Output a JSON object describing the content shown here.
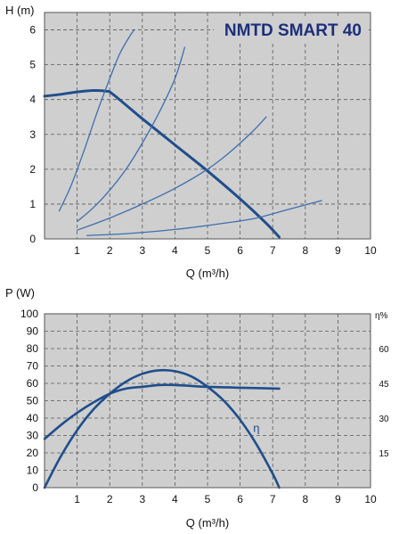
{
  "chart_data": [
    {
      "type": "line",
      "title": "NMTD SMART 40",
      "xlabel": "Q (m³/h)",
      "ylabel": "H (m)",
      "xlim": [
        0,
        10
      ],
      "ylim": [
        0,
        6.5
      ],
      "x_ticks": [
        "1",
        "2",
        "3",
        "4",
        "5",
        "6",
        "7",
        "8",
        "9",
        "10"
      ],
      "y_ticks": [
        "0",
        "1",
        "2",
        "3",
        "4",
        "5",
        "6"
      ],
      "grid": true,
      "colors": {
        "pump_curve": "#1f4e8c",
        "system_curves": "#3d6fae",
        "plot_bg": "#cfcfcf",
        "title": "#1c2f7a"
      },
      "series": [
        {
          "x": [
            0,
            0.5,
            1.0,
            1.5,
            1.9,
            2.1,
            3.0,
            4.0,
            5.0,
            6.0,
            6.8,
            7.2
          ],
          "y": [
            4.1,
            4.15,
            4.22,
            4.26,
            4.24,
            4.15,
            3.45,
            2.7,
            1.95,
            1.15,
            0.45,
            0.05
          ]
        },
        {
          "x": [
            0.45,
            0.8,
            1.2,
            1.6,
            2.0,
            2.3,
            2.6,
            2.75
          ],
          "y": [
            0.8,
            1.5,
            2.5,
            3.6,
            4.6,
            5.3,
            5.8,
            6.0
          ]
        },
        {
          "x": [
            1.0,
            1.5,
            2.0,
            2.5,
            3.0,
            3.5,
            4.0,
            4.3
          ],
          "y": [
            0.5,
            0.9,
            1.4,
            2.0,
            2.75,
            3.6,
            4.6,
            5.5
          ]
        },
        {
          "x": [
            1.0,
            2.0,
            3.0,
            4.0,
            5.0,
            5.7,
            6.4,
            6.8
          ],
          "y": [
            0.25,
            0.6,
            1.0,
            1.45,
            2.0,
            2.5,
            3.1,
            3.5
          ]
        },
        {
          "x": [
            1.3,
            2.5,
            4.0,
            5.5,
            6.5,
            7.5,
            8.5
          ],
          "y": [
            0.1,
            0.15,
            0.27,
            0.45,
            0.6,
            0.85,
            1.1
          ]
        }
      ]
    },
    {
      "type": "line",
      "xlabel": "Q (m³/h)",
      "ylabel": "P (W)",
      "y2label": "η%",
      "xlim": [
        0,
        10
      ],
      "ylim": [
        0,
        100
      ],
      "y2lim": [
        0,
        75
      ],
      "x_ticks": [
        "1",
        "2",
        "3",
        "4",
        "5",
        "6",
        "7",
        "8",
        "9",
        "10"
      ],
      "y_ticks": [
        "0",
        "10",
        "20",
        "30",
        "40",
        "50",
        "60",
        "70",
        "80",
        "90",
        "100"
      ],
      "y2_ticks": [
        "15",
        "30",
        "45",
        "60"
      ],
      "grid": true,
      "colors": {
        "curves": "#1f4e8c",
        "plot_bg": "#cfcfcf"
      },
      "series": [
        {
          "axis": "left",
          "x": [
            0,
            0.5,
            1.0,
            1.5,
            2.0,
            2.5,
            3.0,
            3.5,
            4.0,
            4.5,
            5.0,
            6.0,
            7.2
          ],
          "y": [
            28,
            36,
            43,
            49,
            54,
            57,
            58,
            59,
            59,
            58.5,
            58,
            57.5,
            57
          ]
        },
        {
          "axis": "left",
          "label": "η",
          "x": [
            0,
            0.5,
            1.0,
            1.5,
            2.0,
            2.5,
            3.0,
            3.5,
            4.0,
            4.5,
            5.0,
            5.5,
            6.0,
            6.5,
            7.0,
            7.2
          ],
          "y": [
            0,
            18,
            33,
            45,
            54,
            61,
            65.5,
            67.5,
            67,
            64,
            58,
            50,
            39,
            25,
            8,
            0
          ]
        }
      ]
    }
  ]
}
